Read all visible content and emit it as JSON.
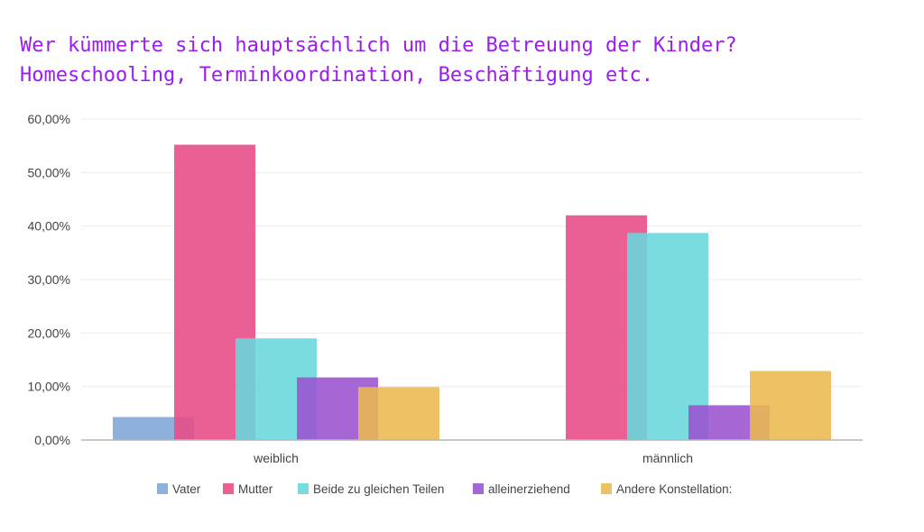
{
  "chart_data": {
    "type": "bar",
    "title_line1": "Wer kümmerte sich hauptsächlich um die Betreuung der Kinder?",
    "title_line2": "Homeschooling, Terminkoordination, Beschäftigung etc.",
    "categories": [
      "weiblich",
      "männlich"
    ],
    "ylim": [
      0,
      60
    ],
    "yticks": [
      0,
      10,
      20,
      30,
      40,
      50,
      60
    ],
    "ytick_labels": [
      "0,00%",
      "10,00%",
      "20,00%",
      "30,00%",
      "40,00%",
      "50,00%",
      "60,00%"
    ],
    "grid": true,
    "legend_position": "bottom",
    "series": [
      {
        "name": "Vater",
        "values": [
          4.3,
          0
        ],
        "color": "#7ea5d6"
      },
      {
        "name": "Mutter",
        "values": [
          55.2,
          42.0
        ],
        "color": "#e84a85"
      },
      {
        "name": "Beide zu gleichen Teilen",
        "values": [
          19.0,
          38.7
        ],
        "color": "#66d8dc"
      },
      {
        "name": "alleinerziehend",
        "values": [
          11.7,
          6.5
        ],
        "color": "#9a52cf"
      },
      {
        "name": "Andere Konstellation:",
        "values": [
          9.9,
          12.9
        ],
        "color": "#eab84f"
      }
    ]
  }
}
